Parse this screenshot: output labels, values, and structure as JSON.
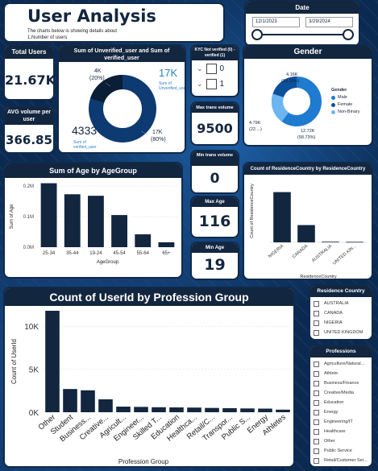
{
  "header": {
    "title": "User Analysis",
    "subtitle_line1": "The charts below is showing details about",
    "subtitle_line2": "1.Number of users"
  },
  "date_slicer": {
    "label": "Date",
    "start": "12/1/2023",
    "end": "3/29/2024"
  },
  "kpis": {
    "total_users_label": "Total Users",
    "total_users_value": "21.67K",
    "avg_volume_label": "AVG volume per user",
    "avg_volume_value": "366.85",
    "max_trans_label": "Max trans volume",
    "max_trans_value": "9500",
    "min_trans_label": "Min trans volume",
    "min_trans_value": "0",
    "max_age_label": "Max Age",
    "max_age_value": "116",
    "min_age_label": "Min Age",
    "min_age_value": "19"
  },
  "kyc_slicer": {
    "label": "KYC Not verified (0) - verified (1)",
    "options": [
      "0",
      "1"
    ]
  },
  "verified_donut": {
    "title": "Sum of Unverified_user and Sum of verified_user",
    "center_value": "4333",
    "center_label": "Sum of verified_user",
    "right_value": "17K",
    "right_label": "Sum of Unverified_user",
    "label_top": "4K",
    "label_top_pct": "(20%)",
    "label_bottom": "17K",
    "label_bottom_pct": "(80%)"
  },
  "gender_donut": {
    "title": "Gender",
    "legend_title": "Gender",
    "legend": [
      "Male",
      "Female",
      "Non-Binary"
    ],
    "label_top": "4.16K",
    "label_top_pct": "(19.18%)",
    "label_left": "4.79K",
    "label_left_pct": "(22....)",
    "label_right": "12.72K",
    "label_right_pct": "(58.73%)"
  },
  "residence_slicer": {
    "label": "Residence Country",
    "options": [
      "AUSTRALIA",
      "CANADA",
      "NIGERIA",
      "UNITED KINGDOM"
    ]
  },
  "professions_slicer": {
    "label": "Professions",
    "options": [
      "Agriculture/Natural...",
      "Athlete",
      "Business/Finance",
      "Creative/Media",
      "Education",
      "Energy",
      "Engineering/IT",
      "Healthcare",
      "Other",
      "Public Service",
      "Retail/Customer Ser..."
    ]
  },
  "chart_data": [
    {
      "type": "bar",
      "title": "Sum of Age by AgeGroup",
      "xlabel": "AgeGroup",
      "ylabel": "Sum of Age",
      "categories": [
        "25-34",
        "35-44",
        "19-24",
        "45-54",
        "55-64",
        "65+"
      ],
      "values": [
        0.209,
        0.173,
        0.168,
        0.105,
        0.042,
        0.016
      ],
      "value_unit": "M",
      "ylim": [
        0,
        0.2
      ],
      "yticks": [
        "0.0M",
        "0.1M",
        "0.2M"
      ]
    },
    {
      "type": "bar",
      "title": "Count of ResidenceCountry by ResidenceCountry",
      "xlabel": "ResidenceCountry",
      "ylabel": "Count of ResidenceCountry",
      "categories": [
        "NIGERIA",
        "CANADA",
        "AUSTRALIA",
        "UNITED KIN..."
      ],
      "values": [
        16000,
        5500,
        200,
        150
      ],
      "ylim": [
        0,
        20000
      ]
    },
    {
      "type": "bar",
      "title": "Count of UserId by Profession Group",
      "xlabel": "Profession Group",
      "ylabel": "Count of UserId",
      "categories": [
        "Other",
        "Student",
        "Business...",
        "Creative...",
        "Agricult...",
        "Engineer...",
        "Skilled T...",
        "Education",
        "Healthca...",
        "Retail/C...",
        "Transpor...",
        "Public S...",
        "Energy",
        "Athletes"
      ],
      "values": [
        11800,
        2700,
        2550,
        1500,
        650,
        620,
        580,
        560,
        540,
        500,
        470,
        440,
        420,
        300
      ],
      "ylim": [
        0,
        11800
      ],
      "yticks": [
        "0K",
        "5K",
        "10K"
      ]
    }
  ]
}
